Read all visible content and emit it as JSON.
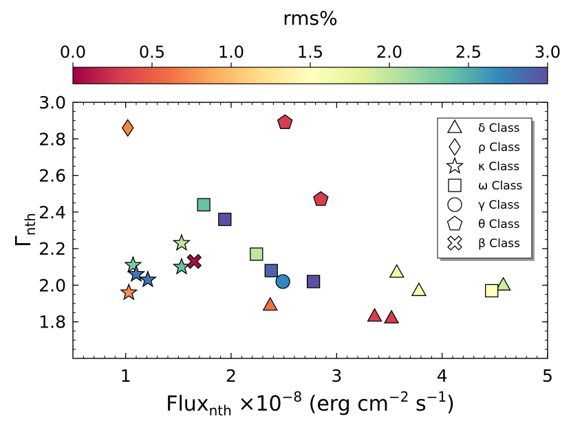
{
  "chart_data": {
    "type": "scatter",
    "xlabel": {
      "main": "Flux",
      "sub": "nth",
      "rest": " ×10",
      "sup": "−8",
      "units": " (erg cm",
      "units_sup": "−2",
      "units_mid": " s",
      "units_sup2": "−1",
      "tail": ")"
    },
    "ylabel": {
      "main": "Γ",
      "sub": "nth"
    },
    "xlim": [
      0.5,
      5.0
    ],
    "ylim": [
      1.6,
      3.0
    ],
    "xticks": [
      1,
      2,
      3,
      4,
      5
    ],
    "xtick_labels": [
      "1",
      "2",
      "3",
      "4",
      "5"
    ],
    "yticks": [
      1.8,
      2.0,
      2.2,
      2.4,
      2.6,
      2.8,
      3.0
    ],
    "ytick_labels": [
      "1.8",
      "2.0",
      "2.2",
      "2.4",
      "2.6",
      "2.8",
      "3.0"
    ],
    "colorbar": {
      "label": "rms%",
      "range": [
        0.0,
        3.0
      ],
      "ticks": [
        0.0,
        0.5,
        1.0,
        1.5,
        2.0,
        2.5,
        3.0
      ],
      "tick_labels": [
        "0.0",
        "0.5",
        "1.0",
        "1.5",
        "2.0",
        "2.5",
        "3.0"
      ],
      "colormap": "Spectral"
    },
    "legend": {
      "position": "top-right",
      "entries": [
        {
          "marker": "triangle",
          "label": "δ Class"
        },
        {
          "marker": "diamond",
          "label": "ρ Class"
        },
        {
          "marker": "star",
          "label": "κ Class"
        },
        {
          "marker": "square",
          "label": "ω Class"
        },
        {
          "marker": "circle",
          "label": "γ Class"
        },
        {
          "marker": "pentagon",
          "label": "θ Class"
        },
        {
          "marker": "cross",
          "label": "β Class"
        }
      ]
    },
    "series": [
      {
        "name": "δ Class",
        "marker": "triangle",
        "points": [
          {
            "x": 2.37,
            "y": 1.89,
            "rms": 0.6
          },
          {
            "x": 3.36,
            "y": 1.83,
            "rms": 0.3
          },
          {
            "x": 3.52,
            "y": 1.82,
            "rms": 0.3
          },
          {
            "x": 3.57,
            "y": 2.07,
            "rms": 1.7
          },
          {
            "x": 3.78,
            "y": 1.97,
            "rms": 1.6
          },
          {
            "x": 4.58,
            "y": 2.0,
            "rms": 1.9
          }
        ]
      },
      {
        "name": "ρ Class",
        "marker": "diamond",
        "points": [
          {
            "x": 1.02,
            "y": 2.86,
            "rms": 0.7
          }
        ]
      },
      {
        "name": "κ Class",
        "marker": "star",
        "points": [
          {
            "x": 1.07,
            "y": 2.11,
            "rms": 2.3
          },
          {
            "x": 1.1,
            "y": 2.06,
            "rms": 2.8
          },
          {
            "x": 1.21,
            "y": 2.03,
            "rms": 2.8
          },
          {
            "x": 1.03,
            "y": 1.96,
            "rms": 0.75
          },
          {
            "x": 1.53,
            "y": 2.23,
            "rms": 2.0
          },
          {
            "x": 1.53,
            "y": 2.1,
            "rms": 2.4
          }
        ]
      },
      {
        "name": "ω Class",
        "marker": "square",
        "points": [
          {
            "x": 1.74,
            "y": 2.44,
            "rms": 2.4
          },
          {
            "x": 1.94,
            "y": 2.36,
            "rms": 3.0
          },
          {
            "x": 2.24,
            "y": 2.17,
            "rms": 2.0
          },
          {
            "x": 2.38,
            "y": 2.08,
            "rms": 2.9
          },
          {
            "x": 2.78,
            "y": 2.02,
            "rms": 3.0
          },
          {
            "x": 4.47,
            "y": 1.97,
            "rms": 1.5
          }
        ]
      },
      {
        "name": "γ Class",
        "marker": "circle",
        "points": [
          {
            "x": 2.49,
            "y": 2.02,
            "rms": 2.7
          }
        ]
      },
      {
        "name": "θ Class",
        "marker": "pentagon",
        "points": [
          {
            "x": 2.51,
            "y": 2.89,
            "rms": 0.3
          },
          {
            "x": 2.85,
            "y": 2.47,
            "rms": 0.3
          }
        ]
      },
      {
        "name": "β Class",
        "marker": "cross",
        "points": [
          {
            "x": 1.65,
            "y": 2.13,
            "rms": 0.05
          }
        ]
      }
    ]
  }
}
